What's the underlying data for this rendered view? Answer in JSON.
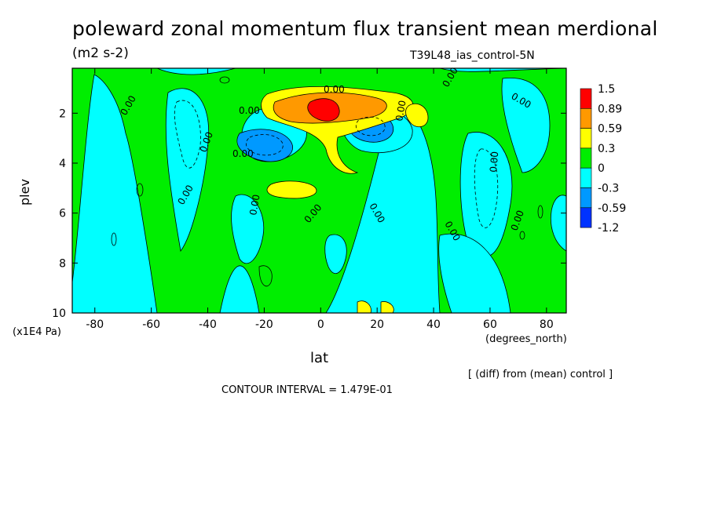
{
  "title": "poleward zonal momentum flux transient mean merdional",
  "units": "(m2 s-2)",
  "run_id": "T39L48_ias_control-5N",
  "x_label": "lat",
  "x_units": "(degrees_north)",
  "y_label": "plev",
  "y_units": "(x1E4 Pa)",
  "diff_note": "[ (diff) from (mean) control ]",
  "contour_interval": "CONTOUR INTERVAL = 1.479E-01",
  "contour_labels": [
    "0.00",
    "0.00",
    "0.00",
    "0.00",
    "0.00",
    "0.00",
    "0.00",
    "0.00",
    "0.00",
    "0.00",
    "0.00",
    "0.00",
    "0.00",
    "0.00",
    "0.00"
  ],
  "chart_data": {
    "type": "heatmap",
    "x_ticks": [
      -80,
      -60,
      -40,
      -20,
      0,
      20,
      40,
      60,
      80
    ],
    "y_ticks": [
      2,
      4,
      6,
      8,
      10
    ],
    "xlim": [
      -88,
      87
    ],
    "ylim": [
      10,
      0.2
    ],
    "legend_levels": [
      "1.5",
      "0.89",
      "0.59",
      "0.3",
      "0",
      "-0.3",
      "-0.59",
      "-1.2"
    ],
    "colors": [
      "#ff0000",
      "#ff9900",
      "#ffff00",
      "#00ee00",
      "#00ffff",
      "#0099ff",
      "#0033ff"
    ],
    "color_bins": [
      {
        "from": 0.89,
        "to": 1.5,
        "color": "#ff0000"
      },
      {
        "from": 0.59,
        "to": 0.89,
        "color": "#ff9900"
      },
      {
        "from": 0.3,
        "to": 0.59,
        "color": "#ffff00"
      },
      {
        "from": 0,
        "to": 0.3,
        "color": "#00ee00"
      },
      {
        "from": -0.3,
        "to": 0,
        "color": "#00ffff"
      },
      {
        "from": -0.59,
        "to": -0.3,
        "color": "#0099ff"
      },
      {
        "from": -1.2,
        "to": -0.59,
        "color": "#0033ff"
      }
    ],
    "legend_placement": "right",
    "grid": false
  }
}
